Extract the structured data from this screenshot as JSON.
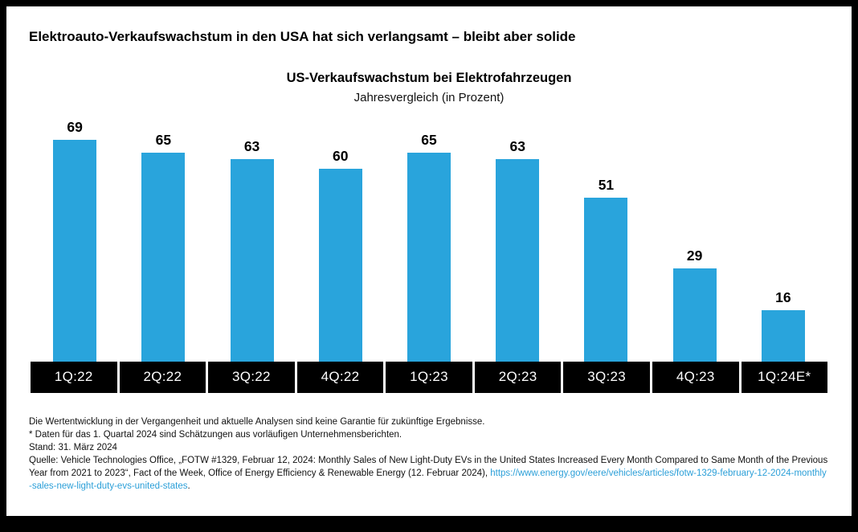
{
  "page": {
    "headline": "Elektroauto-Verkaufswachstum in den USA hat sich verlangsamt – bleibt aber solide"
  },
  "chart_data": {
    "type": "bar",
    "title": "US-Verkaufswachstum bei Elektrofahrzeugen",
    "subtitle": "Jahresvergleich (in Prozent)",
    "categories": [
      "1Q:22",
      "2Q:22",
      "3Q:22",
      "4Q:22",
      "1Q:23",
      "2Q:23",
      "3Q:23",
      "4Q:23",
      "1Q:24E*"
    ],
    "values": [
      69,
      65,
      63,
      60,
      65,
      63,
      51,
      29,
      16
    ],
    "xlabel": "",
    "ylabel": "",
    "ylim": [
      0,
      72
    ],
    "grid": false,
    "legend": "none",
    "value_labels": "above bars, bold black",
    "x_axis_style": "white labels on black boxes",
    "bar_color": "#29A4DC",
    "axis_band_color": "#000000",
    "axis_label_color": "#FFFFFF"
  },
  "footnotes": {
    "line1": "Die Wertentwicklung in der Vergangenheit und aktuelle Analysen sind keine Garantie für zukünftige Ergebnisse.",
    "line2": "* Daten für das 1. Quartal 2024 sind Schätzungen aus vorläufigen Unternehmensberichten.",
    "line3": "Stand: 31. März 2024",
    "source_prefix": "Quelle: Vehicle Technologies Office, „FOTW #1329, Februar 12, 2024: Monthly Sales of New Light-Duty EVs in the United States Increased Every Month Compared to Same Month of the Previous Year from 2021 to 2023“, Fact of the Week, Office of Energy Efficiency & Renewable Energy (12. Februar 2024), ",
    "source_link": "https://www.energy.gov/eere/vehicles/articles/fotw-1329-february-12-2024-monthly-sales-new-light-duty-evs-united-states",
    "source_suffix": ".",
    "link_color": "#2B9FD8"
  }
}
